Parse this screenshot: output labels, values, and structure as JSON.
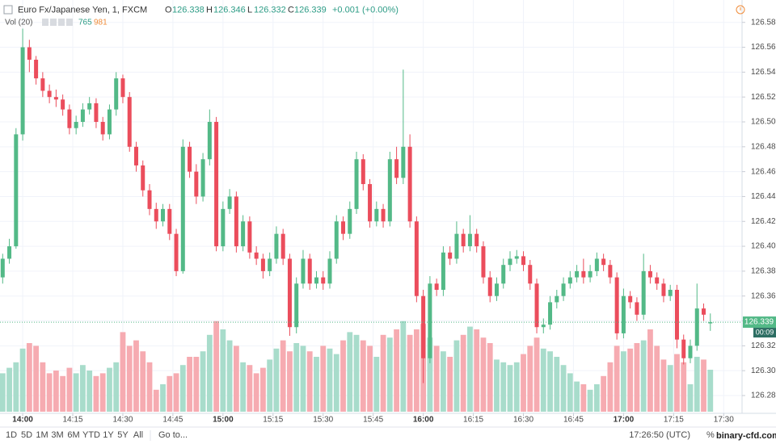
{
  "chart_data": {
    "type": "candlestick",
    "title": "Euro Fx/Japanese Yen, 1, FXCM",
    "x": [
      -6,
      -4,
      -2,
      0,
      2,
      4,
      6,
      8,
      10,
      12,
      14,
      16,
      18,
      20,
      22,
      24,
      26,
      28,
      30,
      32,
      34,
      36,
      38,
      40,
      42,
      44,
      46,
      48,
      50,
      52,
      54,
      56,
      58,
      60,
      62,
      64,
      66,
      68,
      70,
      72,
      74,
      76,
      78,
      80,
      82,
      84,
      86,
      88,
      90,
      92,
      94,
      96,
      98,
      100,
      102,
      104,
      106,
      108,
      110,
      112,
      114,
      116,
      118,
      120,
      122,
      124,
      126,
      128,
      130,
      132,
      134,
      136,
      138,
      140,
      142,
      144,
      146,
      148,
      150,
      152,
      154,
      156,
      158,
      160,
      162,
      164,
      166,
      168,
      170,
      172,
      174,
      176,
      178,
      180,
      182,
      184,
      186,
      188,
      190,
      192,
      194,
      196,
      198,
      200,
      202,
      204,
      206
    ],
    "open": [
      126.375,
      126.39,
      126.4,
      126.49,
      126.56,
      126.55,
      126.535,
      126.525,
      126.52,
      126.518,
      126.51,
      126.495,
      126.5,
      126.51,
      126.515,
      126.5,
      126.49,
      126.51,
      126.535,
      126.52,
      126.48,
      126.465,
      126.445,
      126.43,
      126.42,
      126.43,
      126.41,
      126.38,
      126.48,
      126.46,
      126.44,
      126.47,
      126.5,
      126.4,
      126.43,
      126.44,
      126.4,
      126.42,
      126.395,
      126.39,
      126.38,
      126.39,
      126.41,
      126.39,
      126.335,
      126.37,
      126.39,
      126.37,
      126.375,
      126.37,
      126.39,
      126.42,
      126.41,
      126.43,
      126.47,
      126.45,
      126.42,
      126.43,
      126.42,
      126.47,
      126.455,
      126.48,
      126.42,
      126.36,
      126.31,
      126.37,
      126.365,
      126.395,
      126.39,
      126.41,
      126.4,
      126.41,
      126.4,
      126.375,
      126.36,
      126.37,
      126.385,
      126.39,
      126.392,
      126.385,
      126.37,
      126.335,
      126.337,
      126.355,
      126.36,
      126.37,
      126.375,
      126.38,
      126.375,
      126.38,
      126.39,
      126.385,
      126.375,
      126.33,
      126.36,
      126.355,
      126.345,
      126.38,
      126.375,
      126.37,
      126.36,
      126.365,
      126.325,
      126.31,
      126.32,
      126.35,
      126.338
    ],
    "high": [
      126.394,
      126.406,
      126.495,
      126.575,
      126.566,
      126.553,
      126.54,
      126.53,
      126.526,
      126.522,
      126.514,
      126.505,
      126.515,
      126.52,
      126.519,
      126.504,
      126.514,
      126.54,
      126.538,
      126.524,
      126.484,
      126.469,
      126.45,
      126.435,
      126.434,
      126.434,
      126.414,
      126.486,
      126.484,
      126.466,
      126.475,
      126.51,
      126.504,
      126.436,
      126.446,
      126.444,
      126.425,
      126.424,
      126.4,
      126.394,
      126.395,
      126.416,
      126.414,
      126.394,
      126.375,
      126.397,
      126.394,
      126.38,
      126.38,
      126.396,
      126.425,
      126.424,
      126.436,
      126.476,
      126.474,
      126.454,
      126.436,
      126.434,
      126.476,
      126.48,
      126.542,
      126.49,
      126.424,
      126.365,
      126.376,
      126.374,
      126.4,
      126.4,
      126.42,
      126.414,
      126.425,
      126.414,
      126.404,
      126.38,
      126.375,
      126.39,
      126.396,
      126.397,
      126.396,
      126.389,
      126.374,
      126.342,
      126.36,
      126.365,
      126.375,
      126.38,
      126.385,
      126.39,
      126.385,
      126.395,
      126.394,
      126.389,
      126.379,
      126.366,
      126.364,
      126.359,
      126.394,
      126.385,
      126.379,
      126.374,
      126.369,
      126.369,
      126.329,
      126.325,
      126.37,
      126.354,
      126.346
    ],
    "low": [
      126.37,
      126.386,
      126.398,
      126.485,
      126.54,
      126.53,
      126.52,
      126.515,
      126.512,
      126.505,
      126.49,
      126.49,
      126.496,
      126.506,
      126.495,
      126.485,
      126.486,
      126.505,
      126.515,
      126.476,
      126.46,
      126.44,
      126.425,
      126.414,
      126.416,
      126.405,
      126.376,
      126.378,
      126.455,
      126.434,
      126.436,
      126.465,
      126.396,
      126.396,
      126.426,
      126.395,
      126.396,
      126.39,
      126.385,
      126.374,
      126.376,
      126.386,
      126.385,
      126.328,
      126.33,
      126.366,
      126.365,
      126.366,
      126.365,
      126.366,
      126.386,
      126.405,
      126.406,
      126.426,
      126.445,
      126.415,
      126.416,
      126.415,
      126.416,
      126.45,
      126.45,
      126.415,
      126.355,
      126.29,
      126.306,
      126.36,
      126.36,
      126.385,
      126.386,
      126.395,
      126.396,
      126.395,
      126.37,
      126.355,
      126.356,
      126.366,
      126.38,
      126.386,
      126.38,
      126.365,
      126.33,
      126.33,
      126.333,
      126.35,
      126.356,
      126.366,
      126.371,
      126.37,
      126.371,
      126.376,
      126.38,
      126.37,
      126.325,
      126.326,
      126.35,
      126.34,
      126.341,
      126.37,
      126.365,
      126.355,
      126.356,
      126.318,
      126.305,
      126.306,
      126.316,
      126.34,
      126.332
    ],
    "close": [
      126.39,
      126.4,
      126.49,
      126.56,
      126.55,
      126.535,
      126.525,
      126.52,
      126.518,
      126.51,
      126.495,
      126.5,
      126.51,
      126.515,
      126.5,
      126.49,
      126.51,
      126.535,
      126.52,
      126.48,
      126.465,
      126.445,
      126.43,
      126.42,
      126.43,
      126.41,
      126.38,
      126.48,
      126.46,
      126.44,
      126.47,
      126.5,
      126.4,
      126.43,
      126.44,
      126.4,
      126.42,
      126.395,
      126.39,
      126.38,
      126.39,
      126.41,
      126.39,
      126.335,
      126.37,
      126.39,
      126.37,
      126.375,
      126.37,
      126.39,
      126.42,
      126.41,
      126.43,
      126.47,
      126.45,
      126.42,
      126.43,
      126.42,
      126.47,
      126.455,
      126.48,
      126.42,
      126.36,
      126.31,
      126.37,
      126.365,
      126.395,
      126.39,
      126.41,
      126.4,
      126.41,
      126.4,
      126.375,
      126.36,
      126.37,
      126.385,
      126.39,
      126.392,
      126.385,
      126.37,
      126.335,
      126.337,
      126.355,
      126.36,
      126.37,
      126.375,
      126.38,
      126.375,
      126.38,
      126.39,
      126.385,
      126.375,
      126.33,
      126.36,
      126.355,
      126.345,
      126.38,
      126.375,
      126.37,
      126.36,
      126.365,
      126.325,
      126.31,
      126.32,
      126.35,
      126.345,
      126.339
    ],
    "volume": [
      700,
      800,
      900,
      1150,
      1250,
      1200,
      900,
      700,
      750,
      650,
      800,
      700,
      850,
      750,
      650,
      700,
      800,
      900,
      1450,
      1200,
      1300,
      1100,
      900,
      400,
      500,
      650,
      700,
      850,
      1000,
      1000,
      1100,
      1400,
      1650,
      1500,
      1300,
      1200,
      900,
      850,
      700,
      800,
      950,
      1150,
      1300,
      1100,
      1250,
      1200,
      1100,
      1000,
      1200,
      1150,
      1050,
      1300,
      1450,
      1400,
      1300,
      1200,
      1000,
      1400,
      1350,
      1500,
      1650,
      1400,
      1500,
      1600,
      1350,
      1200,
      1100,
      1000,
      1300,
      1400,
      1550,
      1500,
      1350,
      1250,
      950,
      900,
      850,
      900,
      1050,
      1200,
      1350,
      1150,
      1100,
      1000,
      850,
      700,
      550,
      500,
      400,
      500,
      650,
      900,
      1200,
      1100,
      1150,
      1250,
      1300,
      1500,
      1200,
      950,
      850,
      1050,
      900,
      500,
      1000,
      950,
      765
    ],
    "colors": {
      "up": "#53b987",
      "down": "#eb4d5c",
      "volume_up": "#a8dccb",
      "volume_down": "#f6abb1"
    },
    "ylim": [
      126.267,
      126.598
    ],
    "yticks": [
      {
        "value": 126.28,
        "label": "126.280"
      },
      {
        "value": 126.3,
        "label": "126.300"
      },
      {
        "value": 126.32,
        "label": "126.320"
      },
      {
        "value": 126.34,
        "label": "126.340"
      },
      {
        "value": 126.36,
        "label": "126.360"
      },
      {
        "value": 126.38,
        "label": "126.380"
      },
      {
        "value": 126.4,
        "label": "126.400"
      },
      {
        "value": 126.42,
        "label": "126.420"
      },
      {
        "value": 126.44,
        "label": "126.440"
      },
      {
        "value": 126.46,
        "label": "126.460"
      },
      {
        "value": 126.48,
        "label": "126.480"
      },
      {
        "value": 126.5,
        "label": "126.500"
      },
      {
        "value": 126.52,
        "label": "126.520"
      },
      {
        "value": 126.54,
        "label": "126.540"
      },
      {
        "value": 126.56,
        "label": "126.560"
      },
      {
        "value": 126.58,
        "label": "126.580"
      }
    ],
    "xlim": [
      -6.8,
      215.5
    ],
    "xticks": [
      {
        "value": 0,
        "label": "14:00"
      },
      {
        "value": 15,
        "label": "14:15"
      },
      {
        "value": 30,
        "label": "14:30"
      },
      {
        "value": 45,
        "label": "14:45"
      },
      {
        "value": 60,
        "label": "15:00"
      },
      {
        "value": 75,
        "label": "15:15"
      },
      {
        "value": 90,
        "label": "15:30"
      },
      {
        "value": 105,
        "label": "15:45"
      },
      {
        "value": 120,
        "label": "16:00"
      },
      {
        "value": 135,
        "label": "16:15"
      },
      {
        "value": 150,
        "label": "16:30"
      },
      {
        "value": 165,
        "label": "16:45"
      },
      {
        "value": 180,
        "label": "17:00"
      },
      {
        "value": 195,
        "label": "17:15"
      },
      {
        "value": 210,
        "label": "17:30"
      }
    ],
    "volume_lim": [
      0,
      7500
    ],
    "grid": true,
    "legend": {
      "open_label": "O",
      "open": 126.338,
      "high_label": "H",
      "high": 126.346,
      "low_label": "L",
      "low": 126.332,
      "close_label": "C",
      "close": 126.339,
      "change": "+0.001 (+0.00%)"
    },
    "volume_legend": {
      "label": "Vol (20)",
      "volume": 765,
      "volume_ma": 981
    },
    "last_price": 126.339,
    "countdown": "00:09"
  },
  "toolbar": {
    "ranges": [
      "1D",
      "5D",
      "1M",
      "3M",
      "6M",
      "YTD",
      "1Y",
      "5Y",
      "All"
    ],
    "goto": "Go to...",
    "clock": "17:26:50 (UTC)",
    "percent": "%"
  },
  "watermark": "binary-cfd.com"
}
